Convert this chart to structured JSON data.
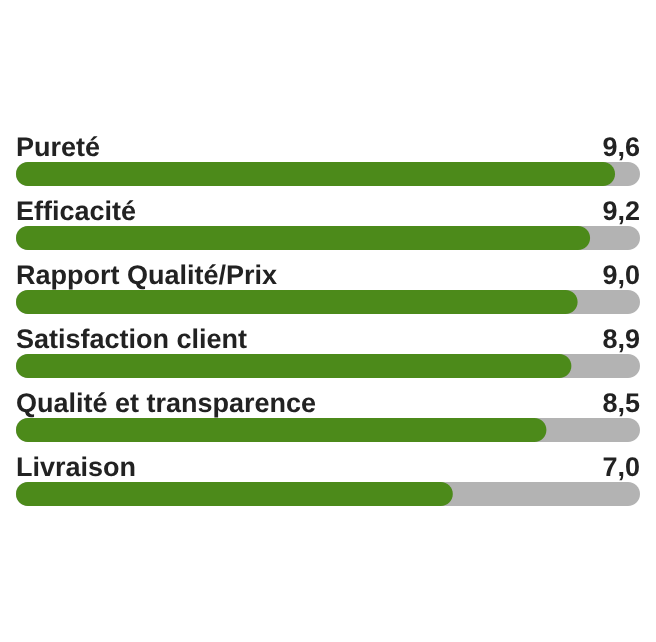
{
  "chart_data": {
    "type": "bar",
    "orientation": "horizontal",
    "categories": [
      "Pureté",
      "Efficacité",
      "Rapport Qualité/Prix",
      "Satisfaction client",
      "Qualité et transparence",
      "Livraison"
    ],
    "values": [
      9.6,
      9.2,
      9.0,
      8.9,
      8.5,
      7.0
    ],
    "color": "#4c8a1a",
    "value_labels": [
      "9,6",
      "9,2",
      "9,0",
      "8,9",
      "8,5",
      "7,0"
    ],
    "xlim": [
      0,
      10
    ],
    "tick_labels": false
  }
}
